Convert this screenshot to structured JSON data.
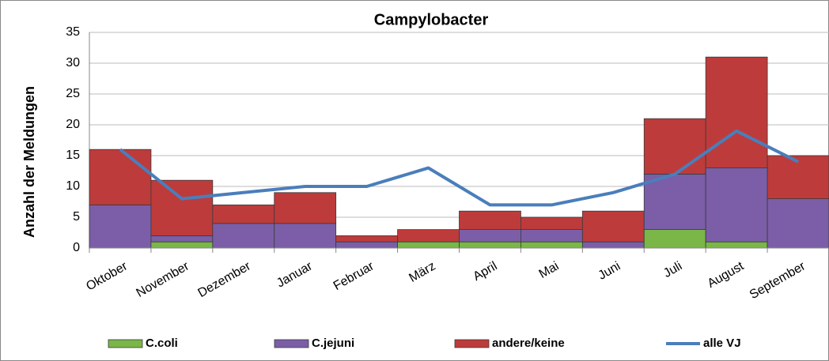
{
  "chart_data": {
    "type": "stacked-bar-line",
    "title": "Campylobacter",
    "y_label": "Anzahl der Meldungen",
    "categories": [
      "Oktober",
      "November",
      "Dezember",
      "Januar",
      "Februar",
      "März",
      "April",
      "Mai",
      "Juni",
      "Juli",
      "August",
      "September"
    ],
    "series": [
      {
        "name": "C.coli",
        "color": "#7ab648",
        "type": "bar",
        "values": [
          0,
          1,
          0,
          0,
          0,
          1,
          1,
          1,
          0,
          3,
          1,
          0
        ]
      },
      {
        "name": "C.jejuni",
        "color": "#7b5ea7",
        "type": "bar",
        "values": [
          7,
          1,
          4,
          4,
          1,
          0,
          2,
          2,
          1,
          9,
          12,
          8
        ]
      },
      {
        "name": "andere/keine",
        "color": "#be3b3b",
        "type": "bar",
        "values": [
          9,
          9,
          3,
          5,
          1,
          2,
          3,
          2,
          5,
          9,
          18,
          7
        ]
      },
      {
        "name": "alle VJ",
        "color": "#4a7ebb",
        "type": "line",
        "values": [
          16,
          8,
          9,
          10,
          10,
          13,
          7,
          7,
          9,
          12,
          19,
          14
        ]
      }
    ],
    "ylim": [
      0,
      35
    ],
    "yticks": [
      0,
      5,
      10,
      15,
      20,
      25,
      30,
      35
    ],
    "grid": true,
    "legend": "bottom"
  }
}
